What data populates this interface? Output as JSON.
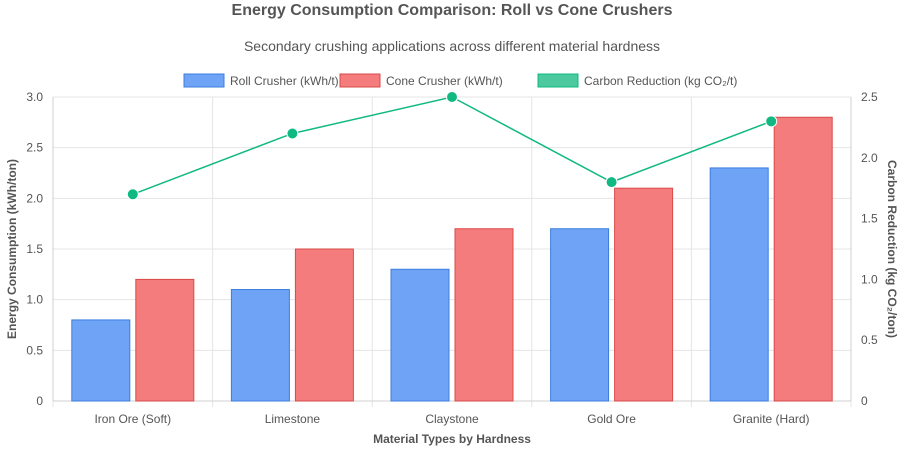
{
  "chart_data": {
    "type": "bar",
    "title": "Energy Consumption Comparison: Roll vs Cone Crushers",
    "subtitle": "Secondary crushing applications across different material hardness",
    "xlabel": "Material Types by Hardness",
    "ylabel": "Energy Consumption (kWh/ton)",
    "y2label": "Carbon Reduction (kg CO₂/ton)",
    "categories": [
      "Iron Ore (Soft)",
      "Limestone",
      "Claystone",
      "Gold Ore",
      "Granite (Hard)"
    ],
    "ylim": [
      0,
      3.0
    ],
    "y2lim": [
      0,
      2.5
    ],
    "yticks": [
      "0",
      "0.5",
      "1.0",
      "1.5",
      "2.0",
      "2.5",
      "3.0"
    ],
    "y2ticks": [
      "0",
      "0.5",
      "1.0",
      "1.5",
      "2.0",
      "2.5"
    ],
    "grid": true,
    "legend_position": "top-center",
    "series": [
      {
        "name": "Roll Crusher (kWh/t)",
        "type": "bar",
        "axis": "left",
        "color": "#6fa3f6",
        "border": "#3b7ddd",
        "values": [
          0.8,
          1.1,
          1.3,
          1.7,
          2.3
        ]
      },
      {
        "name": "Cone Crusher (kWh/t)",
        "type": "bar",
        "axis": "left",
        "color": "#f47c7c",
        "border": "#d94a4a",
        "values": [
          1.2,
          1.5,
          1.7,
          2.1,
          2.8
        ]
      },
      {
        "name": "Carbon Reduction (kg CO₂/t)",
        "type": "line",
        "axis": "right",
        "color": "#10b981",
        "legend_fill": "#4cc99f",
        "values": [
          1.7,
          2.2,
          2.5,
          1.8,
          2.3
        ]
      }
    ]
  }
}
